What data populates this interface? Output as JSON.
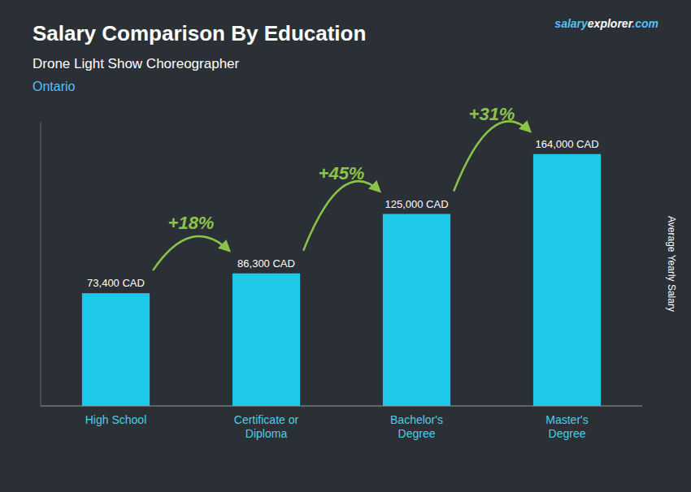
{
  "chart_data": {
    "type": "bar",
    "title": "Salary Comparison By Education",
    "subtitle": "Drone Light Show Choreographer",
    "annotations": {
      "location": "Ontario",
      "brand": [
        "salary",
        "explorer",
        ".com"
      ],
      "changes": [
        "+18%",
        "+45%",
        "+31%"
      ]
    },
    "y_label": "Average Yearly Salary",
    "categories": [
      "High School",
      "Certificate or\nDiploma",
      "Bachelor's\nDegree",
      "Master's\nDegree"
    ],
    "values": [
      73400,
      86300,
      125000,
      164000
    ],
    "value_labels": [
      "73,400 CAD",
      "86,300 CAD",
      "125,000 CAD",
      "164,000 CAD"
    ],
    "data_labels": true,
    "color": "#1ec8e8",
    "ylim": [
      0,
      185000
    ],
    "yticks": [],
    "tick_labels": "x"
  }
}
